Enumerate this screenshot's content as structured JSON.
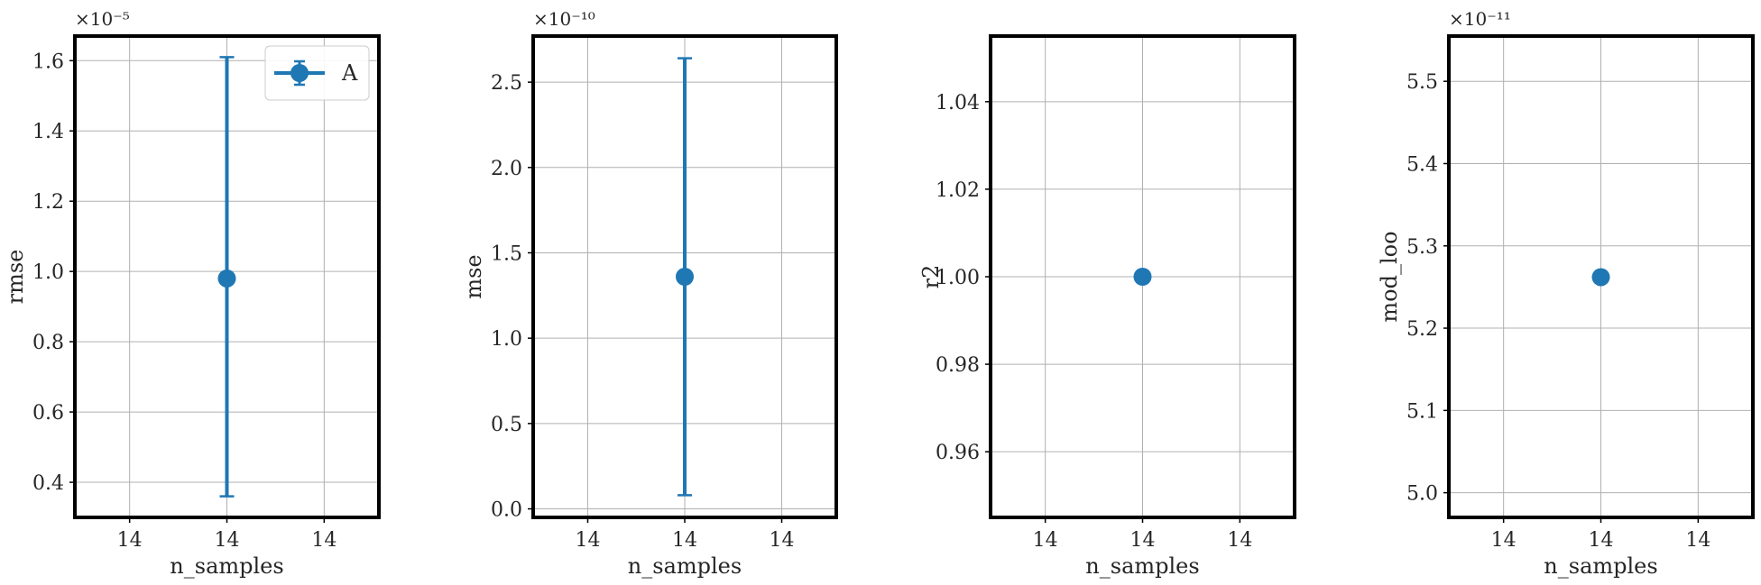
{
  "chart_data": [
    {
      "type": "scatter",
      "xlabel": "n_samples",
      "ylabel": "rmse",
      "offset_text": "×10⁻⁵",
      "x_tick_labels": [
        "14",
        "14",
        "14"
      ],
      "y_ticks": [
        "0.4",
        "0.6",
        "0.8",
        "1.0",
        "1.2",
        "1.4",
        "1.6"
      ],
      "ylim": [
        0.3,
        1.67
      ],
      "grid": true,
      "legend": {
        "placement": "top-right",
        "entries": [
          "A"
        ]
      },
      "series": [
        {
          "name": "A",
          "color": "#1f77b4",
          "x": [
            14
          ],
          "y": [
            0.98
          ],
          "err_low": [
            0.36
          ],
          "err_high": [
            1.61
          ]
        }
      ]
    },
    {
      "type": "scatter",
      "xlabel": "n_samples",
      "ylabel": "mse",
      "offset_text": "×10⁻¹⁰",
      "x_tick_labels": [
        "14",
        "14",
        "14"
      ],
      "y_ticks": [
        "0.0",
        "0.5",
        "1.0",
        "1.5",
        "2.0",
        "2.5"
      ],
      "ylim": [
        -0.05,
        2.77
      ],
      "grid": true,
      "series": [
        {
          "color": "#1f77b4",
          "x": [
            14
          ],
          "y": [
            1.36
          ],
          "err_low": [
            0.08
          ],
          "err_high": [
            2.64
          ]
        }
      ]
    },
    {
      "type": "scatter",
      "xlabel": "n_samples",
      "ylabel": "r2",
      "offset_text": "",
      "x_tick_labels": [
        "14",
        "14",
        "14"
      ],
      "y_ticks": [
        "0.96",
        "0.98",
        "1.00",
        "1.02",
        "1.04"
      ],
      "ylim": [
        0.945,
        1.055
      ],
      "grid": true,
      "series": [
        {
          "color": "#1f77b4",
          "x": [
            14
          ],
          "y": [
            1.0
          ]
        }
      ]
    },
    {
      "type": "scatter",
      "xlabel": "n_samples",
      "ylabel": "mod_loo",
      "offset_text": "×10⁻¹¹",
      "x_tick_labels": [
        "14",
        "14",
        "14"
      ],
      "y_ticks": [
        "5.0",
        "5.1",
        "5.2",
        "5.3",
        "5.4",
        "5.5"
      ],
      "ylim": [
        4.97,
        5.555
      ],
      "grid": true,
      "series": [
        {
          "color": "#1f77b4",
          "x": [
            14
          ],
          "y": [
            5.262
          ]
        }
      ]
    }
  ]
}
